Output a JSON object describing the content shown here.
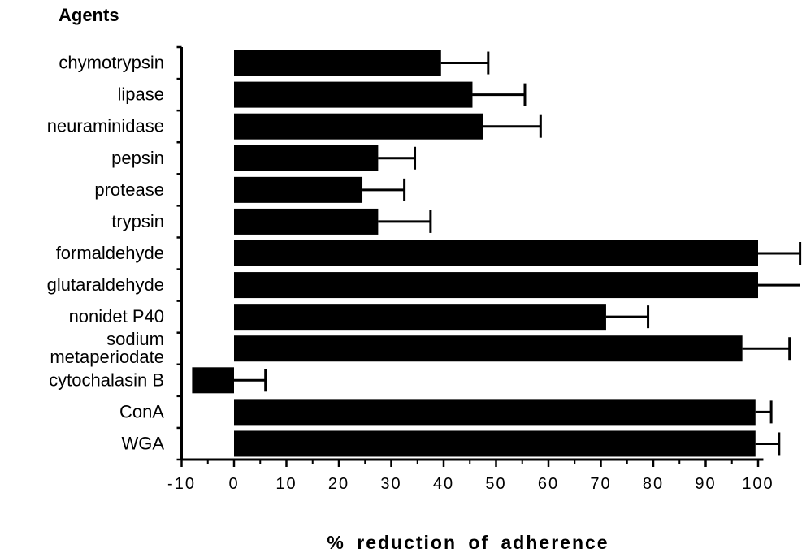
{
  "chart_data": {
    "type": "bar",
    "orientation": "horizontal",
    "title": "Agents",
    "xlabel": "% reduction of adherence",
    "ylabel": "",
    "xlim": [
      -10,
      105
    ],
    "xticks": [
      -10,
      0,
      10,
      20,
      30,
      40,
      50,
      60,
      70,
      80,
      90,
      100
    ],
    "tick_labels": [
      "-10",
      "0",
      "10",
      "20",
      "30",
      "40",
      "50",
      "60",
      "70",
      "80",
      "90",
      "100"
    ],
    "grid": false,
    "error_bars": true,
    "bar_color": "#000000",
    "categories": [
      [
        "chymotrypsin"
      ],
      [
        "lipase"
      ],
      [
        "neuraminidase"
      ],
      [
        "pepsin"
      ],
      [
        "protease"
      ],
      [
        "trypsin"
      ],
      [
        "formaldehyde"
      ],
      [
        "glutaraldehyde"
      ],
      [
        "nonidet P40"
      ],
      [
        "sodium",
        "metaperiodate"
      ],
      [
        "cytochalasin B"
      ],
      [
        "ConA"
      ],
      [
        "WGA"
      ]
    ],
    "values": [
      39.5,
      45.5,
      47.5,
      27.5,
      24.5,
      27.5,
      100,
      100,
      71,
      97,
      -8,
      99.5,
      99.5
    ],
    "errors": [
      9,
      10,
      11,
      7,
      8,
      10,
      8,
      9,
      8,
      9,
      14,
      3,
      4.5
    ]
  }
}
